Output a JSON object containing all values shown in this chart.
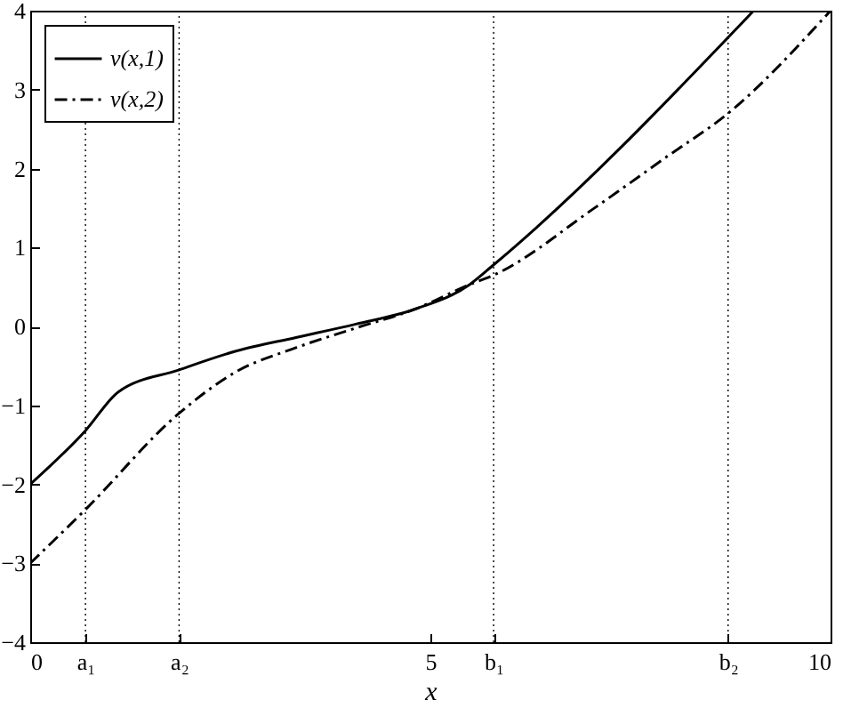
{
  "chart_data": {
    "type": "line",
    "xlabel": "x",
    "xlim": [
      0,
      10
    ],
    "ylim": [
      -4,
      4
    ],
    "xticks": [
      0,
      {
        "value": 0.69,
        "label": "a₁"
      },
      {
        "value": 1.86,
        "label": "a₂"
      },
      5,
      {
        "value": 5.79,
        "label": "b₁"
      },
      {
        "value": 8.72,
        "label": "b₂"
      },
      10
    ],
    "yticks": [
      -4,
      -3,
      -2,
      -1,
      0,
      1,
      2,
      3,
      4
    ],
    "legend": "top left",
    "series": [
      {
        "name": "v(x,1)",
        "color": "#000000",
        "line_style": "solid",
        "x": [
          0,
          0.69,
          1.1,
          1.86,
          2.58,
          3.32,
          4.07,
          4.81,
          5.49,
          5.79,
          9.04
        ],
        "values": [
          -2,
          -1.32,
          -0.83,
          -0.55,
          -0.31,
          -0.14,
          0.03,
          0.22,
          0.53,
          0.78,
          4
        ]
      },
      {
        "name": "v(x,2)",
        "color": "#000000",
        "line_style": "dashed",
        "x": [
          0,
          0.69,
          1.86,
          2.58,
          3.32,
          4.07,
          4.81,
          5.49,
          5.79,
          7.05,
          7.94,
          8.72,
          10
        ],
        "values": [
          -3,
          -2.32,
          -1.1,
          -0.57,
          -0.27,
          -0.02,
          0.22,
          0.53,
          0.65,
          1.5,
          2.14,
          2.7,
          4
        ]
      }
    ],
    "ref_lines": [
      {
        "axis": "x",
        "value": 0.69,
        "color": "#000000",
        "line_style": "dotted"
      },
      {
        "axis": "x",
        "value": 1.86,
        "color": "#000000",
        "line_style": "dotted"
      },
      {
        "axis": "x",
        "value": 5.79,
        "color": "#000000",
        "line_style": "dotted"
      },
      {
        "axis": "x",
        "value": 8.72,
        "color": "#000000",
        "line_style": "dotted"
      }
    ]
  }
}
